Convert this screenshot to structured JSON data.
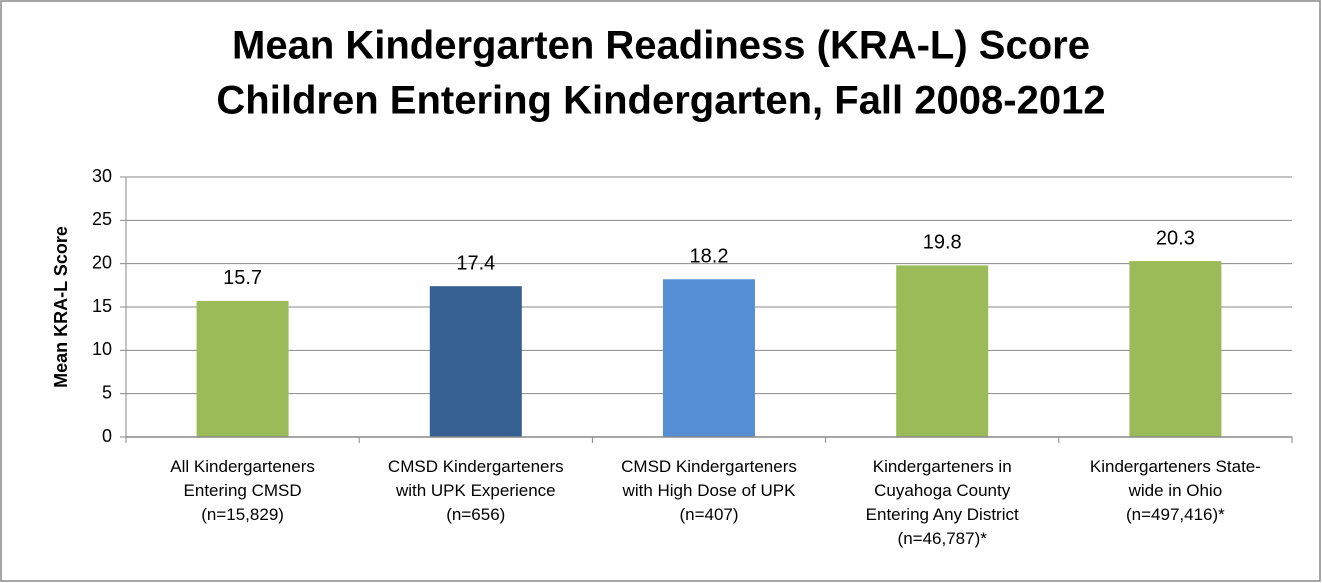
{
  "chart_data": {
    "type": "bar",
    "title": "Mean Kindergarten Readiness (KRA-L) Score",
    "subtitle": "Children Entering Kindergarten, Fall 2008-2012",
    "y_label": "Mean KRA-L Score",
    "categories": [
      "All Kindergarteners\nEntering CMSD\n(n=15,829)",
      "CMSD Kindergarteners\nwith UPK Experience\n(n=656)",
      "CMSD Kindergarteners\nwith High Dose of UPK\n(n=407)",
      "Kindergarteners in\nCuyahoga County\nEntering Any District\n(n=46,787)*",
      "Kindergarteners State-\nwide in Ohio\n(n=497,416)*"
    ],
    "values": [
      15.7,
      17.4,
      18.2,
      19.8,
      20.3
    ],
    "colors": [
      "#9bbb59",
      "#366092",
      "#558ed5",
      "#9bbb59",
      "#9bbb59"
    ],
    "ylim": [
      0,
      30
    ],
    "yticks": [
      0,
      5,
      10,
      15,
      20,
      25,
      30
    ],
    "grid": true
  }
}
